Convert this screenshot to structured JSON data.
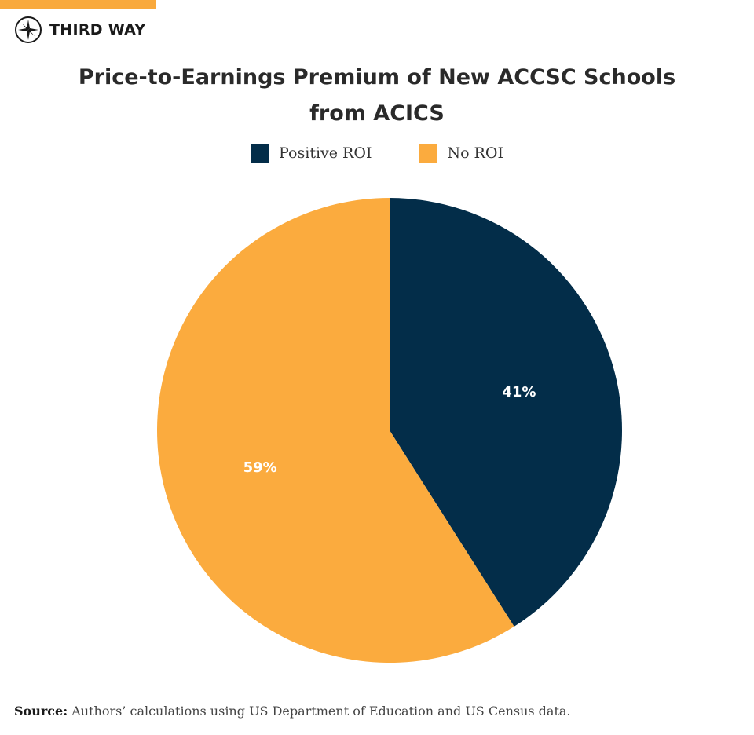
{
  "brand": {
    "name": "THIRD WAY",
    "logo_icon": "compass-star-icon",
    "accent_color": "#f9a93c"
  },
  "chart_data": {
    "type": "pie",
    "title_lines": [
      "Price-to-Earnings Premium of New ACCSC Schools",
      "from ACICS"
    ],
    "legend_position": "top-center",
    "slices": [
      {
        "label": "Positive ROI",
        "value": 41,
        "display": "41%",
        "color": "#032d49"
      },
      {
        "label": "No ROI",
        "value": 59,
        "display": "59%",
        "color": "#fbab3e"
      }
    ]
  },
  "source": {
    "label": "Source:",
    "text": "Authors’ calculations using US Department of Education and US Census data."
  }
}
